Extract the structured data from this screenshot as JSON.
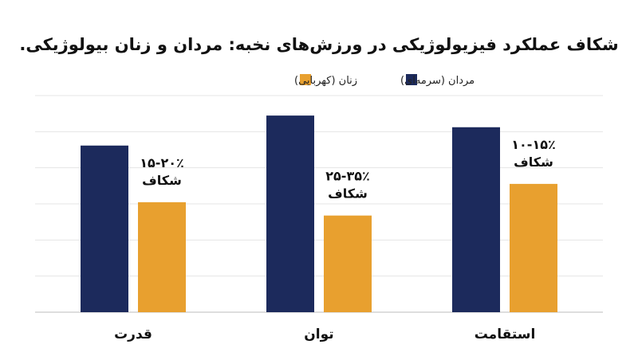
{
  "colors": {
    "men": "#1c2a5c",
    "women": "#e8a02f",
    "grid": "#e4e4e4",
    "axis": "#bdbdbd"
  },
  "chart_data": {
    "type": "bar",
    "title": "شکاف عملکرد فیزیولوژیکی در ورزش‌های نخبه: مردان و زنان بیولوژیکی.",
    "xlabel": "",
    "ylabel": "",
    "categories": [
      "قدرت",
      "توان",
      "استقامت"
    ],
    "series": [
      {
        "name": "مردان (سرمه‌ای)",
        "color": "#1c2a5c",
        "values": [
          100,
          118,
          111
        ]
      },
      {
        "name": "زنان (کهربایی)",
        "color": "#e8a02f",
        "values": [
          66,
          58,
          77
        ]
      }
    ],
    "gap_labels": [
      {
        "range": "۱۵-۲۰٪",
        "word": "شکاف"
      },
      {
        "range": "۲۵-۳۵٪",
        "word": "شکاف"
      },
      {
        "range": "۱۰-۱۵٪",
        "word": "شکاف"
      }
    ],
    "ylim": [
      0,
      130
    ],
    "grid": true,
    "legend_position": "top"
  }
}
